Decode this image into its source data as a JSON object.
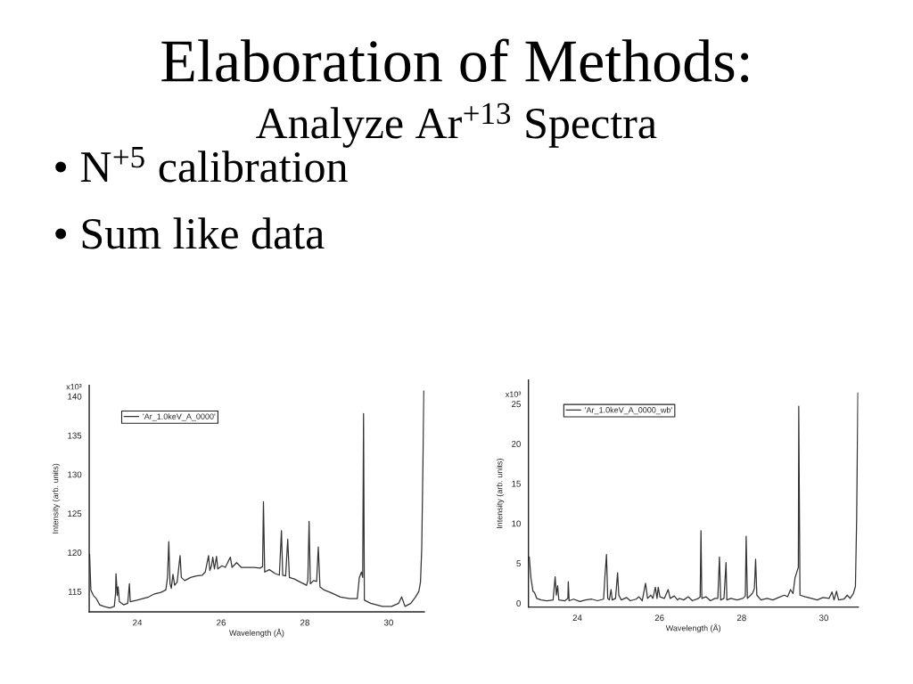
{
  "chart_data": [
    {
      "type": "other",
      "title": "Elaboration of Methods:",
      "subtitle": "Analyze Ar$^{+13}$ Spectra",
      "annotations": [
        "• N$^{+5}$ calibration",
        "• Sum like data"
      ]
    },
    {
      "type": "line",
      "xlabel": "Wavelength (Å)",
      "ylabel": "Intensity (arb. units)",
      "legend": "top left",
      "marker": "none",
      "line_style": "solid",
      "annotations": [
        "x10³"
      ],
      "xlim": [
        22.85,
        30.85
      ],
      "ylim": [
        112.4,
        141.4
      ],
      "xticks": [
        24,
        26,
        28,
        30
      ],
      "yticks": [
        115,
        120,
        125,
        130,
        135,
        140
      ],
      "x": [
        22.86,
        22.89,
        22.95,
        23.02,
        23.1,
        23.2,
        23.34,
        23.45,
        23.48,
        23.49,
        23.52,
        23.54,
        23.57,
        23.67,
        23.77,
        23.81,
        23.83,
        23.99,
        24.13,
        24.27,
        24.41,
        24.56,
        24.68,
        24.72,
        24.75,
        24.78,
        24.81,
        24.85,
        24.89,
        24.95,
        25.02,
        25.05,
        25.13,
        25.27,
        25.41,
        25.55,
        25.62,
        25.7,
        25.73,
        25.77,
        25.8,
        25.84,
        25.89,
        25.92,
        26.02,
        26.1,
        26.22,
        26.26,
        26.37,
        26.48,
        26.65,
        26.79,
        26.93,
        26.99,
        27.01,
        27.04,
        27.15,
        27.29,
        27.39,
        27.44,
        27.47,
        27.54,
        27.59,
        27.63,
        27.75,
        27.89,
        28.04,
        28.07,
        28.1,
        28.13,
        28.21,
        28.28,
        28.32,
        28.36,
        28.46,
        28.64,
        28.85,
        29.07,
        29.25,
        29.3,
        29.35,
        29.38,
        29.4,
        29.42,
        29.57,
        29.71,
        29.85,
        30.07,
        30.24,
        30.31,
        30.39,
        30.53,
        30.64,
        30.72,
        30.76,
        30.79,
        30.82,
        30.84
      ],
      "series": [
        {
          "name": "'Ar_1.0keV_A_0000'",
          "color": "#333333",
          "values": [
            119.8,
            115.2,
            114.5,
            114.1,
            113.3,
            113.1,
            112.9,
            113.1,
            114.8,
            117.3,
            114.5,
            115.6,
            113.7,
            113.3,
            113.5,
            116.0,
            113.7,
            113.9,
            114.1,
            114.3,
            114.7,
            114.9,
            115.2,
            116.8,
            121.4,
            116.0,
            115.4,
            117.2,
            115.8,
            116.2,
            119.6,
            116.8,
            116.4,
            116.8,
            117.0,
            117.1,
            117.5,
            119.6,
            117.7,
            118.3,
            119.4,
            117.9,
            119.5,
            117.9,
            118.3,
            118.1,
            119.4,
            118.1,
            118.7,
            118.1,
            118.1,
            118.1,
            118.0,
            118.2,
            126.5,
            117.5,
            117.8,
            117.3,
            117.1,
            122.8,
            117.1,
            117.0,
            121.7,
            116.8,
            116.6,
            116.2,
            115.8,
            116.4,
            124.0,
            116.0,
            116.4,
            116.3,
            120.7,
            115.6,
            115.2,
            114.8,
            114.3,
            114.1,
            114.1,
            116.8,
            117.5,
            116.8,
            137.8,
            113.9,
            113.5,
            113.3,
            113.1,
            113.1,
            113.5,
            114.3,
            113.1,
            113.5,
            114.3,
            115.0,
            116.2,
            120.6,
            132.1,
            140.7
          ]
        }
      ]
    },
    {
      "type": "line",
      "xlabel": "Wavelength (Å)",
      "ylabel": "Intensity (arb. units)",
      "legend": "top left",
      "marker": "none",
      "line_style": "solid",
      "annotations": [
        "x10³"
      ],
      "xlim": [
        22.81,
        30.84
      ],
      "ylim": [
        -0.5,
        28
      ],
      "xticks": [
        24,
        26,
        28,
        30
      ],
      "yticks": [
        0,
        5,
        10,
        15,
        20,
        25
      ],
      "x": [
        22.83,
        22.87,
        22.92,
        22.96,
        23.01,
        23.12,
        23.26,
        23.41,
        23.46,
        23.49,
        23.52,
        23.55,
        23.7,
        23.77,
        23.78,
        23.8,
        23.91,
        24.06,
        24.2,
        24.35,
        24.49,
        24.64,
        24.67,
        24.71,
        24.74,
        24.78,
        24.82,
        24.85,
        24.93,
        24.98,
        25.01,
        25.07,
        25.2,
        25.29,
        25.43,
        25.5,
        25.58,
        25.66,
        25.71,
        25.79,
        25.84,
        25.9,
        25.94,
        25.97,
        26.01,
        26.12,
        26.21,
        26.26,
        26.36,
        26.44,
        26.48,
        26.59,
        26.7,
        26.8,
        26.95,
        26.99,
        27.01,
        27.03,
        27.13,
        27.24,
        27.35,
        27.42,
        27.46,
        27.49,
        27.57,
        27.62,
        27.64,
        27.74,
        27.89,
        28.03,
        28.09,
        28.11,
        28.14,
        28.22,
        28.27,
        28.31,
        28.34,
        28.37,
        28.47,
        28.62,
        28.76,
        28.9,
        29.04,
        29.12,
        29.19,
        29.25,
        29.3,
        29.35,
        29.38,
        29.39,
        29.42,
        29.55,
        29.7,
        29.84,
        29.98,
        30.13,
        30.2,
        30.25,
        30.31,
        30.36,
        30.49,
        30.57,
        30.64,
        30.72,
        30.77,
        30.8,
        30.83
      ],
      "series": [
        {
          "name": "'Ar_1.0keV_A_0000_wb'",
          "color": "#333333",
          "values": [
            5.8,
            3.2,
            1.5,
            1.3,
            0.6,
            0.4,
            0.3,
            0.4,
            3.3,
            1.0,
            2.2,
            0.4,
            0.3,
            0.6,
            2.7,
            0.3,
            0.5,
            0.2,
            0.4,
            0.5,
            0.3,
            0.5,
            3.2,
            6.1,
            0.6,
            0.4,
            1.7,
            0.4,
            0.6,
            3.8,
            1.0,
            0.4,
            0.7,
            0.3,
            0.5,
            0.8,
            0.3,
            2.5,
            0.6,
            1.0,
            0.6,
            2.0,
            0.6,
            2.0,
            0.8,
            0.6,
            1.7,
            0.6,
            0.9,
            0.4,
            0.6,
            0.4,
            0.8,
            0.3,
            0.6,
            0.8,
            9.1,
            0.6,
            0.8,
            0.3,
            0.6,
            0.6,
            5.8,
            0.4,
            0.6,
            5.1,
            0.4,
            0.6,
            0.4,
            0.6,
            0.9,
            8.4,
            0.6,
            1.0,
            1.3,
            1.8,
            5.5,
            1.0,
            0.4,
            0.6,
            0.4,
            0.7,
            1.0,
            0.8,
            1.7,
            1.2,
            3.2,
            4.0,
            4.5,
            24.7,
            1.0,
            0.8,
            0.6,
            0.4,
            0.7,
            0.6,
            1.4,
            0.4,
            1.5,
            0.4,
            0.5,
            1.0,
            0.6,
            1.2,
            2.1,
            10.7,
            26.4
          ]
        }
      ]
    }
  ]
}
